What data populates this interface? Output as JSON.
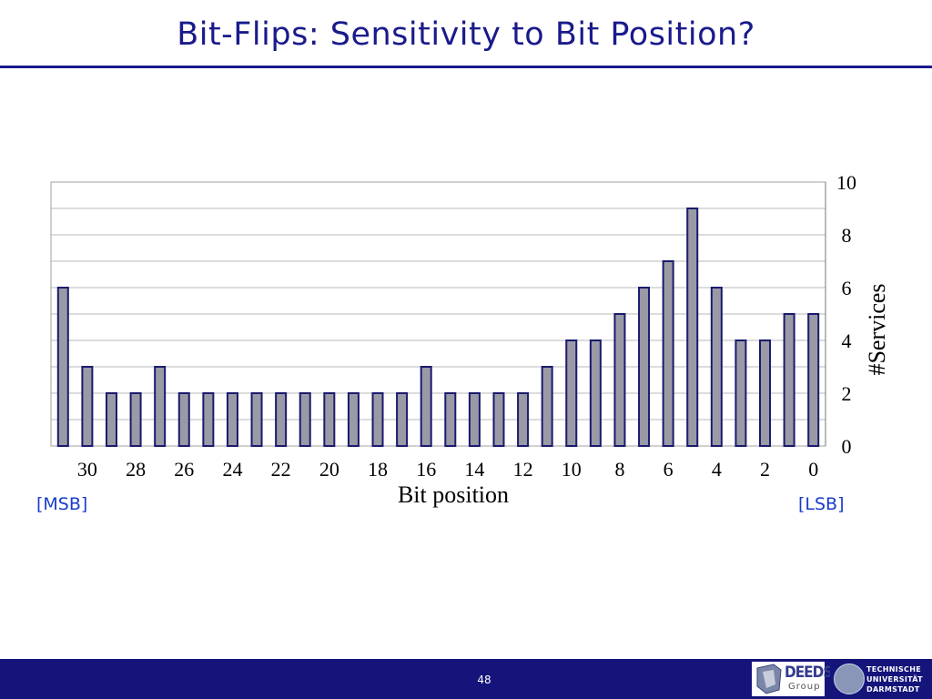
{
  "slide": {
    "title": "Bit-Flips: Sensitivity to Bit Position?",
    "msb_label": "[MSB]",
    "lsb_label": "[LSB]",
    "page_number": "48",
    "footer_logo_left": "DEEDS",
    "footer_logo_left_sub": "Group",
    "footer_logo_right": [
      "TECHNISCHE",
      "UNIVERSITÄT",
      "DARMSTADT"
    ]
  },
  "colors": {
    "title": "#1a1a8c",
    "accent_blue": "#1a3ccc",
    "footer": "#14147a",
    "bar_fill": "#9a9aa6",
    "bar_stroke": "#1a1a6e",
    "grid": "#b8b8b8"
  },
  "chart_data": {
    "type": "bar",
    "xlabel": "Bit position",
    "ylabel": "#Services",
    "ylim": [
      0,
      10
    ],
    "yticks": [
      0,
      2,
      4,
      6,
      8,
      10
    ],
    "x_order": "descending",
    "x_tick_labels": [
      "30",
      "28",
      "26",
      "24",
      "22",
      "20",
      "18",
      "16",
      "14",
      "12",
      "10",
      "8",
      "6",
      "4",
      "2",
      "0"
    ],
    "categories": [
      31,
      30,
      29,
      28,
      27,
      26,
      25,
      24,
      23,
      22,
      21,
      20,
      19,
      18,
      17,
      16,
      15,
      14,
      13,
      12,
      11,
      10,
      9,
      8,
      7,
      6,
      5,
      4,
      3,
      2,
      1,
      0
    ],
    "values": [
      6,
      3,
      2,
      2,
      3,
      2,
      2,
      2,
      2,
      2,
      2,
      2,
      2,
      2,
      2,
      3,
      2,
      2,
      2,
      2,
      3,
      4,
      4,
      5,
      6,
      7,
      9,
      6,
      4,
      4,
      5,
      5
    ],
    "grid": true,
    "y_axis_side": "right"
  }
}
